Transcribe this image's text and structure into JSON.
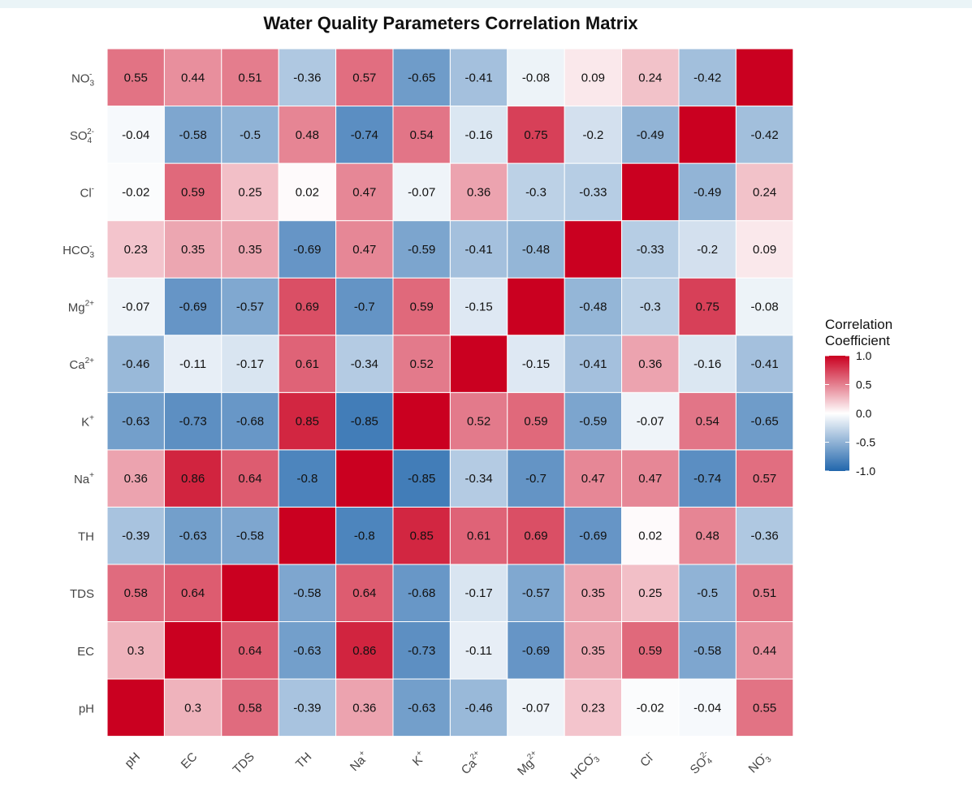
{
  "chart_data": {
    "type": "heatmap",
    "title": "Water Quality Parameters Correlation Matrix",
    "xlabel": "",
    "ylabel": "",
    "variables": [
      {
        "base": "pH",
        "sub": "",
        "sup": ""
      },
      {
        "base": "EC",
        "sub": "",
        "sup": ""
      },
      {
        "base": "TDS",
        "sub": "",
        "sup": ""
      },
      {
        "base": "TH",
        "sub": "",
        "sup": ""
      },
      {
        "base": "Na",
        "sub": "",
        "sup": "+"
      },
      {
        "base": "K",
        "sub": "",
        "sup": "+"
      },
      {
        "base": "Ca",
        "sub": "",
        "sup": "2+"
      },
      {
        "base": "Mg",
        "sub": "",
        "sup": "2+"
      },
      {
        "base": "HCO",
        "sub": "3",
        "sup": "-"
      },
      {
        "base": "Cl",
        "sub": "",
        "sup": "-"
      },
      {
        "base": "SO",
        "sub": "4",
        "sup": "2-"
      },
      {
        "base": "NO",
        "sub": "3",
        "sup": "-"
      }
    ],
    "y_order": "bottom-to-top (pH at bottom, NO3- at top)",
    "matrix": [
      [
        1,
        0.3,
        0.58,
        -0.39,
        0.36,
        -0.63,
        -0.46,
        -0.07,
        0.23,
        -0.02,
        -0.04,
        0.55
      ],
      [
        0.3,
        1,
        0.64,
        -0.63,
        0.86,
        -0.73,
        -0.11,
        -0.69,
        0.35,
        0.59,
        -0.58,
        0.44
      ],
      [
        0.58,
        0.64,
        1,
        -0.58,
        0.64,
        -0.68,
        -0.17,
        -0.57,
        0.35,
        0.25,
        -0.5,
        0.51
      ],
      [
        -0.39,
        -0.63,
        -0.58,
        1,
        -0.8,
        0.85,
        0.61,
        0.69,
        -0.69,
        0.02,
        0.48,
        -0.36
      ],
      [
        0.36,
        0.86,
        0.64,
        -0.8,
        1,
        -0.85,
        -0.34,
        -0.7,
        0.47,
        0.47,
        -0.74,
        0.57
      ],
      [
        -0.63,
        -0.73,
        -0.68,
        0.85,
        -0.85,
        1,
        0.52,
        0.59,
        -0.59,
        -0.07,
        0.54,
        -0.65
      ],
      [
        -0.46,
        -0.11,
        -0.17,
        0.61,
        -0.34,
        0.52,
        1,
        -0.15,
        -0.41,
        0.36,
        -0.16,
        -0.41
      ],
      [
        -0.07,
        -0.69,
        -0.57,
        0.69,
        -0.7,
        0.59,
        -0.15,
        1,
        -0.48,
        -0.3,
        0.75,
        -0.08
      ],
      [
        0.23,
        0.35,
        0.35,
        -0.69,
        0.47,
        -0.59,
        -0.41,
        -0.48,
        1,
        -0.33,
        -0.2,
        0.09
      ],
      [
        -0.02,
        0.59,
        0.25,
        0.02,
        0.47,
        -0.07,
        0.36,
        -0.3,
        -0.33,
        1,
        -0.49,
        0.24
      ],
      [
        -0.04,
        -0.58,
        -0.5,
        0.48,
        -0.74,
        0.54,
        -0.16,
        0.75,
        -0.2,
        -0.49,
        1,
        -0.42
      ],
      [
        0.55,
        0.44,
        0.51,
        -0.36,
        0.57,
        -0.65,
        -0.41,
        -0.08,
        0.09,
        0.24,
        -0.42,
        1
      ]
    ],
    "show_diagonal_labels": false,
    "value_range": [
      -1,
      1
    ],
    "colors": {
      "negative": "#2166ac",
      "middle": "#ffffff",
      "positive": "#ca0020"
    },
    "legend": {
      "title_line1": "Correlation",
      "title_line2": "Coefficient",
      "ticks": [
        "1.0",
        "0.5",
        "0.0",
        "-0.5",
        "-1.0"
      ],
      "tick_values": [
        1,
        0.5,
        0,
        -0.5,
        -1
      ],
      "placement": "right"
    },
    "grid": false
  }
}
